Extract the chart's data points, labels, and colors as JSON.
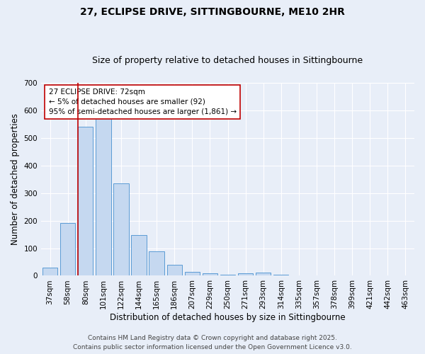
{
  "title1": "27, ECLIPSE DRIVE, SITTINGBOURNE, ME10 2HR",
  "title2": "Size of property relative to detached houses in Sittingbourne",
  "xlabel": "Distribution of detached houses by size in Sittingbourne",
  "ylabel": "Number of detached properties",
  "bar_labels": [
    "37sqm",
    "58sqm",
    "80sqm",
    "101sqm",
    "122sqm",
    "144sqm",
    "165sqm",
    "186sqm",
    "207sqm",
    "229sqm",
    "250sqm",
    "271sqm",
    "293sqm",
    "314sqm",
    "335sqm",
    "357sqm",
    "378sqm",
    "399sqm",
    "421sqm",
    "442sqm",
    "463sqm"
  ],
  "bar_values": [
    30,
    192,
    540,
    575,
    335,
    148,
    88,
    40,
    13,
    10,
    5,
    10,
    11,
    4,
    0,
    0,
    0,
    0,
    0,
    0,
    0
  ],
  "bar_color": "#c5d8f0",
  "bar_edge_color": "#5b9bd5",
  "vline_color": "#c00000",
  "annotation_text": "27 ECLIPSE DRIVE: 72sqm\n← 5% of detached houses are smaller (92)\n95% of semi-detached houses are larger (1,861) →",
  "annotation_box_color": "#ffffff",
  "annotation_box_edge": "#c00000",
  "ylim": [
    0,
    700
  ],
  "yticks": [
    0,
    100,
    200,
    300,
    400,
    500,
    600,
    700
  ],
  "background_color": "#e8eef8",
  "grid_color": "#ffffff",
  "footer_line1": "Contains HM Land Registry data © Crown copyright and database right 2025.",
  "footer_line2": "Contains public sector information licensed under the Open Government Licence v3.0.",
  "title1_fontsize": 10,
  "title2_fontsize": 9,
  "axis_label_fontsize": 8.5,
  "tick_fontsize": 7.5,
  "annotation_fontsize": 7.5,
  "footer_fontsize": 6.5
}
